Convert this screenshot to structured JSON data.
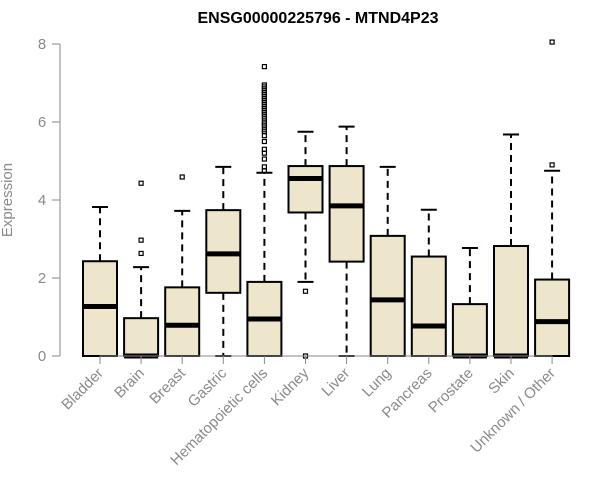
{
  "chart_data": {
    "type": "boxplot",
    "title": "ENSG00000225796 - MTND4P23",
    "ylabel": "Expression",
    "xlabel": "",
    "ylim": [
      0,
      8
    ],
    "yticks": [
      0,
      2,
      4,
      6,
      8
    ],
    "grid": false,
    "box_fill": "#ede6cc",
    "categories": [
      "Bladder",
      "Brain",
      "Breast",
      "Gastric",
      "Hematopoietic cells",
      "Kidney",
      "Liver",
      "Lung",
      "Pancreas",
      "Prostate",
      "Skin",
      "Unknown / Other"
    ],
    "boxes": [
      {
        "category": "Bladder",
        "whisker_low": 0.0,
        "q1": 0.0,
        "median": 1.27,
        "q3": 2.43,
        "whisker_high": 3.82,
        "outliers": []
      },
      {
        "category": "Brain",
        "whisker_low": 0.0,
        "q1": 0.0,
        "median": 0.0,
        "q3": 0.97,
        "whisker_high": 2.28,
        "outliers": [
          2.63,
          2.97,
          4.43
        ]
      },
      {
        "category": "Breast",
        "whisker_low": 0.0,
        "q1": 0.0,
        "median": 0.79,
        "q3": 1.76,
        "whisker_high": 3.72,
        "outliers": [
          4.59
        ]
      },
      {
        "category": "Gastric",
        "whisker_low": 0.0,
        "q1": 1.62,
        "median": 2.62,
        "q3": 3.74,
        "whisker_high": 4.85,
        "outliers": []
      },
      {
        "category": "Hematopoietic cells",
        "whisker_low": 0.0,
        "q1": 0.0,
        "median": 0.95,
        "q3": 1.9,
        "whisker_high": 4.7,
        "outliers": [
          4.75,
          4.85,
          5.05,
          5.2,
          5.3,
          5.5,
          5.65,
          5.75,
          5.8,
          5.9,
          5.95,
          6.0,
          6.1,
          6.15,
          6.2,
          6.25,
          6.3,
          6.35,
          6.4,
          6.45,
          6.5,
          6.55,
          6.6,
          6.65,
          6.7,
          6.75,
          6.8,
          6.85,
          6.9,
          6.95,
          7.42
        ]
      },
      {
        "category": "Kidney",
        "whisker_low": 1.9,
        "q1": 3.68,
        "median": 4.55,
        "q3": 4.87,
        "whisker_high": 5.75,
        "outliers": [
          0.0,
          1.66
        ]
      },
      {
        "category": "Liver",
        "whisker_low": 0.0,
        "q1": 2.42,
        "median": 3.85,
        "q3": 4.87,
        "whisker_high": 5.88,
        "outliers": []
      },
      {
        "category": "Lung",
        "whisker_low": 0.0,
        "q1": 0.0,
        "median": 1.44,
        "q3": 3.08,
        "whisker_high": 4.85,
        "outliers": []
      },
      {
        "category": "Pancreas",
        "whisker_low": 0.0,
        "q1": 0.0,
        "median": 0.77,
        "q3": 2.55,
        "whisker_high": 3.75,
        "outliers": []
      },
      {
        "category": "Prostate",
        "whisker_low": 0.0,
        "q1": 0.0,
        "median": 0.0,
        "q3": 1.33,
        "whisker_high": 2.77,
        "outliers": []
      },
      {
        "category": "Skin",
        "whisker_low": 0.0,
        "q1": 0.0,
        "median": 0.0,
        "q3": 2.82,
        "whisker_high": 5.68,
        "outliers": []
      },
      {
        "category": "Unknown / Other",
        "whisker_low": 0.0,
        "q1": 0.0,
        "median": 0.88,
        "q3": 1.96,
        "whisker_high": 4.75,
        "outliers": [
          4.9,
          8.05
        ]
      }
    ]
  }
}
